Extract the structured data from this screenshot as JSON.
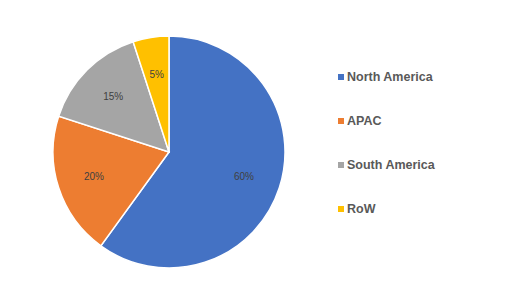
{
  "chart_data": {
    "type": "pie",
    "categories": [
      "North America",
      "APAC",
      "South America",
      "RoW"
    ],
    "values": [
      60,
      20,
      15,
      5
    ],
    "value_labels": [
      "60%",
      "20%",
      "15%",
      "5%"
    ],
    "colors": [
      "#4472c4",
      "#ed7d31",
      "#a5a5a5",
      "#ffc000"
    ],
    "data_labels": true,
    "legend": "right"
  }
}
